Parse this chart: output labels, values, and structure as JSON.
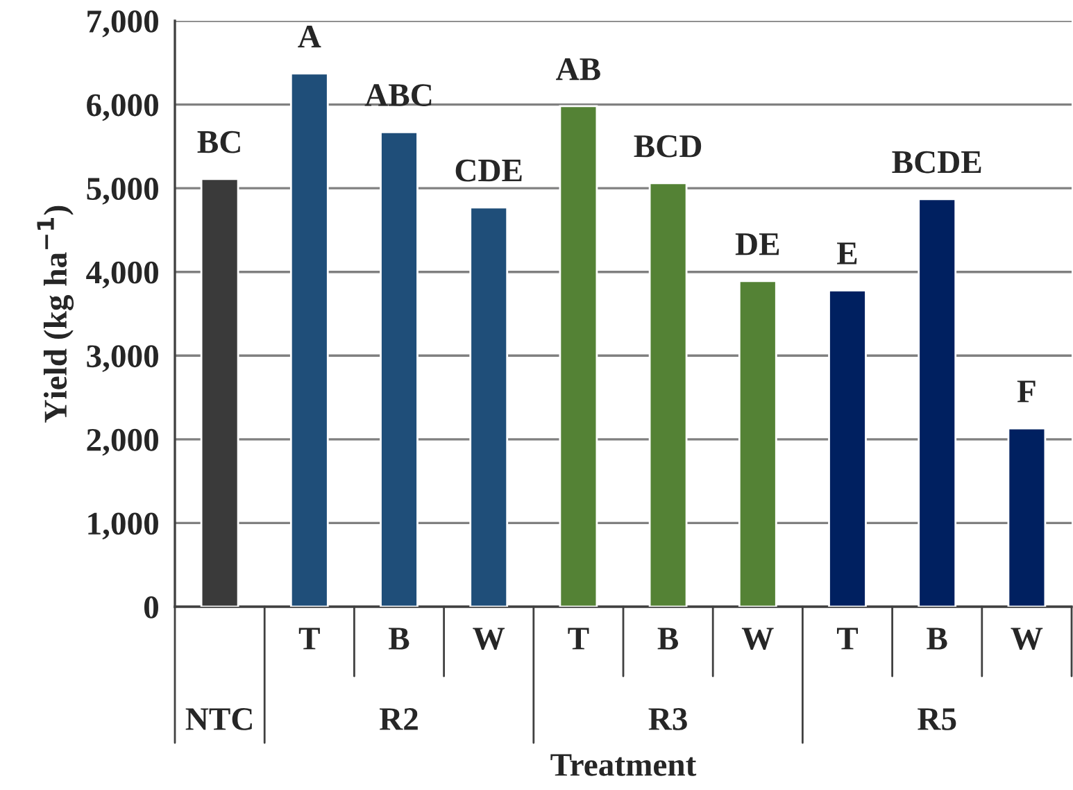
{
  "chart_data": {
    "type": "bar",
    "xlabel": "Treatment",
    "ylabel": "Yield (kg ha$^{−1}$)",
    "categories": [
      null,
      "T",
      "B",
      "W",
      "T",
      "B",
      "W",
      "T",
      "B",
      "W"
    ],
    "values": [
      5110,
      6370,
      5670,
      4770,
      5980,
      5060,
      3890,
      3780,
      4870,
      2130
    ],
    "colors": [
      "#3a3a3a",
      "#1f4e79",
      "#1f4e79",
      "#1f4e79",
      "#548235",
      "#548235",
      "#548235",
      "#002060",
      "#002060",
      "#002060"
    ],
    "value_labels": [
      "BC",
      "A",
      "ABC",
      "CDE",
      "AB",
      "BCD",
      "DE",
      "E",
      "BCDE",
      "F"
    ],
    "annotations": [
      "NTC",
      "R2",
      "R3",
      "R5"
    ],
    "ylim": [
      0,
      7000
    ],
    "yticks": [
      {
        "value": 0,
        "label": "0"
      },
      {
        "value": 1000,
        "label": "1,000"
      },
      {
        "value": 2000,
        "label": "2,000"
      },
      {
        "value": 3000,
        "label": "3,000"
      },
      {
        "value": 4000,
        "label": "4,000"
      },
      {
        "value": 5000,
        "label": "5,000"
      },
      {
        "value": 6000,
        "label": "6,000"
      },
      {
        "value": 7000,
        "label": "7,000"
      }
    ],
    "grid": "y",
    "legend": false
  }
}
